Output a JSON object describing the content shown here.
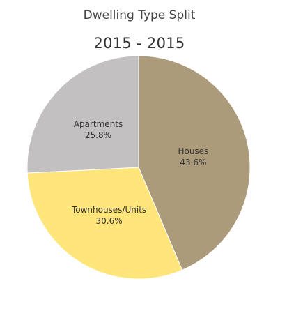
{
  "chart_data": {
    "type": "pie",
    "title": "Dwelling Type Split",
    "subtitle": "2015 - 2015",
    "slices": [
      {
        "label": "Houses",
        "value": 43.6,
        "value_label": "43.6%",
        "color": "#ab9b7b"
      },
      {
        "label": "Townhouses/Units",
        "value": 30.6,
        "value_label": "30.6%",
        "color": "#ffe57a"
      },
      {
        "label": "Apartments",
        "value": 25.8,
        "value_label": "25.8%",
        "color": "#c3c0c2"
      }
    ]
  }
}
